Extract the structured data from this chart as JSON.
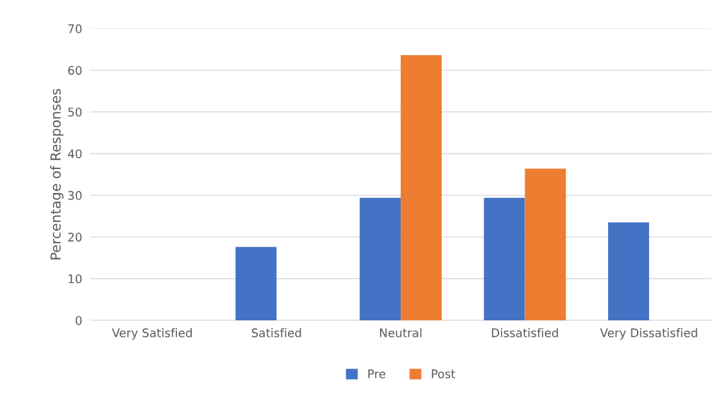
{
  "chart_data": {
    "type": "bar",
    "ylabel": "Percentage of Responses",
    "categories": [
      "Very Satisfied",
      "Satisfied",
      "Neutral",
      "Dissatisfied",
      "Very Dissatisfied"
    ],
    "series": [
      {
        "name": "Pre",
        "color": "#4472c4",
        "values": [
          0,
          17.6,
          29.4,
          29.4,
          23.5
        ]
      },
      {
        "name": "Post",
        "color": "#ed7d31",
        "values": [
          0,
          0,
          63.6,
          36.4,
          0
        ]
      }
    ],
    "ylim": [
      0,
      70
    ],
    "yticks": [
      0,
      10,
      20,
      30,
      40,
      50,
      60,
      70
    ],
    "grid": "y",
    "legend": "bottom"
  }
}
